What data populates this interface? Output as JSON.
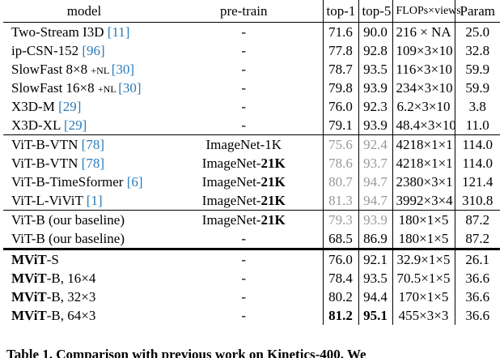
{
  "table": {
    "header": [
      "model",
      "pre-train",
      "top-1",
      "top-5",
      "FLOPs×views",
      "Param"
    ],
    "groups": [
      {
        "rows": [
          {
            "model": [
              {
                "text": "Two-Stream I3D "
              },
              {
                "text": "[11]",
                "cite": true
              }
            ],
            "pretrain": [
              {
                "text": "-"
              }
            ],
            "top1": "71.6",
            "top5": "90.0",
            "flops": "216 × NA",
            "param": "25.0"
          },
          {
            "model": [
              {
                "text": "ip-CSN-152 "
              },
              {
                "text": "[96]",
                "cite": true
              }
            ],
            "pretrain": [
              {
                "text": "-"
              }
            ],
            "top1": "77.8",
            "top5": "92.8",
            "flops": "109×3×10",
            "param": "32.8"
          },
          {
            "model": [
              {
                "text": "SlowFast 8×8 "
              },
              {
                "text": "+NL ",
                "small": true
              },
              {
                "text": "[30]",
                "cite": true
              }
            ],
            "pretrain": [
              {
                "text": "-"
              }
            ],
            "top1": "78.7",
            "top5": "93.5",
            "flops": "116×3×10",
            "param": "59.9"
          },
          {
            "model": [
              {
                "text": "SlowFast 16×8 "
              },
              {
                "text": "+NL ",
                "small": true
              },
              {
                "text": "[30]",
                "cite": true
              }
            ],
            "pretrain": [
              {
                "text": "-"
              }
            ],
            "top1": "79.8",
            "top5": "93.9",
            "flops": "234×3×10",
            "param": "59.9"
          },
          {
            "model": [
              {
                "text": "X3D-M "
              },
              {
                "text": "[29]",
                "cite": true
              }
            ],
            "pretrain": [
              {
                "text": "-"
              }
            ],
            "top1": "76.0",
            "top5": "92.3",
            "flops": "6.2×3×10",
            "param": "3.8"
          },
          {
            "model": [
              {
                "text": "X3D-XL "
              },
              {
                "text": "[29]",
                "cite": true
              }
            ],
            "pretrain": [
              {
                "text": "-"
              }
            ],
            "top1": "79.1",
            "top5": "93.9",
            "flops": "48.4×3×10",
            "param": "11.0"
          }
        ]
      },
      {
        "rows": [
          {
            "model": [
              {
                "text": "ViT-B-VTN "
              },
              {
                "text": "[78]",
                "cite": true
              }
            ],
            "pretrain": [
              {
                "text": "ImageNet-1K"
              }
            ],
            "top1": "75.6",
            "top5": "92.4",
            "muted": true,
            "flops": "4218×1×1",
            "param": "114.0"
          },
          {
            "model": [
              {
                "text": "ViT-B-VTN "
              },
              {
                "text": "[78]",
                "cite": true
              }
            ],
            "pretrain": [
              {
                "text": "ImageNet-"
              },
              {
                "text": "21K",
                "bold": true
              }
            ],
            "top1": "78.6",
            "top5": "93.7",
            "muted": true,
            "flops": "4218×1×1",
            "param": "114.0"
          },
          {
            "model": [
              {
                "text": "ViT-B-TimeSformer "
              },
              {
                "text": "[6]",
                "cite": true
              }
            ],
            "pretrain": [
              {
                "text": "ImageNet-"
              },
              {
                "text": "21K",
                "bold": true
              }
            ],
            "top1": "80.7",
            "top5": "94.7",
            "muted": true,
            "flops": "2380×3×1",
            "param": "121.4"
          },
          {
            "model": [
              {
                "text": "ViT-L-ViViT "
              },
              {
                "text": "[1]",
                "cite": true
              }
            ],
            "pretrain": [
              {
                "text": "ImageNet-"
              },
              {
                "text": "21K",
                "bold": true
              }
            ],
            "top1": "81.3",
            "top5": "94.7",
            "muted": true,
            "flops": "3992×3×4",
            "param": "310.8"
          }
        ]
      },
      {
        "rows": [
          {
            "model": [
              {
                "text": "ViT-B (our baseline)"
              }
            ],
            "pretrain": [
              {
                "text": "ImageNet-"
              },
              {
                "text": "21K",
                "bold": true
              }
            ],
            "top1": "79.3",
            "top5": "93.9",
            "muted": true,
            "flops": "180×1×5",
            "param": "87.2"
          },
          {
            "model": [
              {
                "text": "ViT-B (our baseline)"
              }
            ],
            "pretrain": [
              {
                "text": "-"
              }
            ],
            "top1": "68.5",
            "top5": "86.9",
            "flops": "180×1×5",
            "param": "87.2"
          }
        ]
      },
      {
        "thick": true,
        "rows": [
          {
            "model": [
              {
                "text": "MViT",
                "bold": true
              },
              {
                "text": "-S"
              }
            ],
            "pretrain": [
              {
                "text": "-"
              }
            ],
            "top1": "76.0",
            "top5": "92.1",
            "flops": "32.9×1×5",
            "param": "26.1"
          },
          {
            "model": [
              {
                "text": "MViT",
                "bold": true
              },
              {
                "text": "-B, 16×4"
              }
            ],
            "pretrain": [
              {
                "text": "-"
              }
            ],
            "top1": "78.4",
            "top5": "93.5",
            "flops": "70.5×1×5",
            "param": "36.6"
          },
          {
            "model": [
              {
                "text": "MViT",
                "bold": true
              },
              {
                "text": "-B, 32×3"
              }
            ],
            "pretrain": [
              {
                "text": "-"
              }
            ],
            "top1": "80.2",
            "top5": "94.4",
            "flops": "170×1×5",
            "param": "36.6"
          },
          {
            "model": [
              {
                "text": "MViT",
                "bold": true
              },
              {
                "text": "-B, 64×3"
              }
            ],
            "pretrain": [
              {
                "text": "-"
              }
            ],
            "top1": "81.2",
            "top5": "95.1",
            "best": true,
            "flops": "455×3×3",
            "param": "36.6"
          }
        ]
      }
    ],
    "caption": "Table 1. Comparison with previous work on Kinetics-400. We"
  }
}
